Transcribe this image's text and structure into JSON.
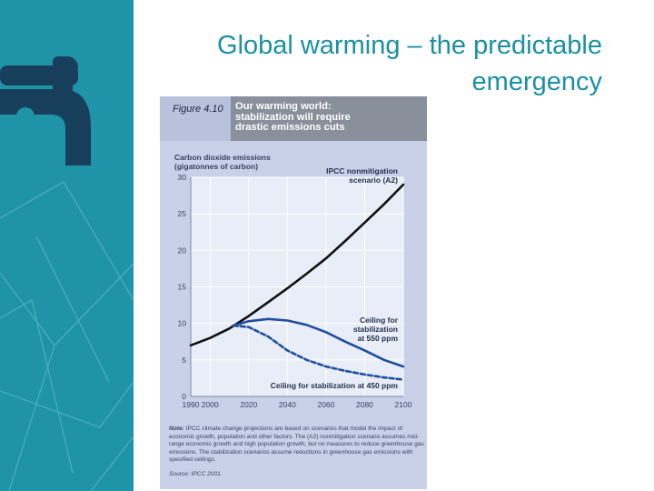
{
  "slide": {
    "title_line1": "Global warming – the predictable",
    "title_line2": "emergency"
  },
  "figure": {
    "label": "Figure 4.10",
    "title_lines": [
      "Our warming world:",
      "stabilization will require",
      "drastic emissions cuts"
    ],
    "note_label": "Note:",
    "note": "IPCC climate change projections are based on scenarios that model the impact of economic growth, population and other factors. The (A2) nonmitigation scenario assumes mid-range economic growth and high population growth, but no measures to reduce greenhouse gas emissions. The stabilization scenarios assume reductions in greenhouse gas emissions with specified ceilings.",
    "source": "Source: IPCC 2001."
  },
  "colors": {
    "sidebar": "#1f93a8",
    "title": "#1a90a3",
    "figure_bg": "#c9d1e9",
    "header": "#8a8f9c",
    "a2_line": "#111111",
    "stab_line": "#1f4f9e"
  },
  "chart_data": {
    "type": "line",
    "ylabel_lines": [
      "Carbon dioxide emissions",
      "(gigatonnes of carbon)"
    ],
    "x_ticks": [
      "1990",
      "2000",
      "2020",
      "2040",
      "2060",
      "2080",
      "2100"
    ],
    "y_ticks": [
      "0",
      "5",
      "10",
      "15",
      "20",
      "25",
      "30"
    ],
    "xlim": [
      1990,
      2100
    ],
    "ylim": [
      0,
      30
    ],
    "grid": true,
    "series": [
      {
        "name": "IPCC nonmitigation scenario (A2)",
        "label_lines": [
          "IPCC nonmitigation",
          "scenario (A2)"
        ],
        "style": "solid",
        "color": "#111111",
        "x": [
          1990,
          2000,
          2010,
          2020,
          2030,
          2040,
          2050,
          2060,
          2070,
          2080,
          2090,
          2100
        ],
        "y": [
          7.0,
          8.0,
          9.3,
          11.0,
          12.9,
          14.8,
          16.8,
          18.9,
          21.3,
          23.8,
          26.3,
          29.0
        ]
      },
      {
        "name": "Ceiling for stabilization at 550 ppm",
        "label_lines": [
          "Ceiling for",
          "stabilization",
          "at 550 ppm"
        ],
        "style": "solid",
        "color": "#1f4f9e",
        "x": [
          2012,
          2020,
          2030,
          2040,
          2050,
          2060,
          2070,
          2080,
          2090,
          2100
        ],
        "y": [
          9.7,
          10.3,
          10.6,
          10.4,
          9.8,
          8.8,
          7.5,
          6.3,
          5.0,
          4.1
        ]
      },
      {
        "name": "Ceiling for stabilization at 450 ppm",
        "label_lines": [
          "Ceiling for stabilization at 450 ppm"
        ],
        "style": "dashed",
        "color": "#1f4f9e",
        "x": [
          2012,
          2020,
          2030,
          2040,
          2050,
          2060,
          2070,
          2080,
          2090,
          2100
        ],
        "y": [
          9.7,
          9.5,
          8.2,
          6.3,
          5.0,
          4.1,
          3.5,
          3.0,
          2.6,
          2.3
        ]
      }
    ]
  }
}
